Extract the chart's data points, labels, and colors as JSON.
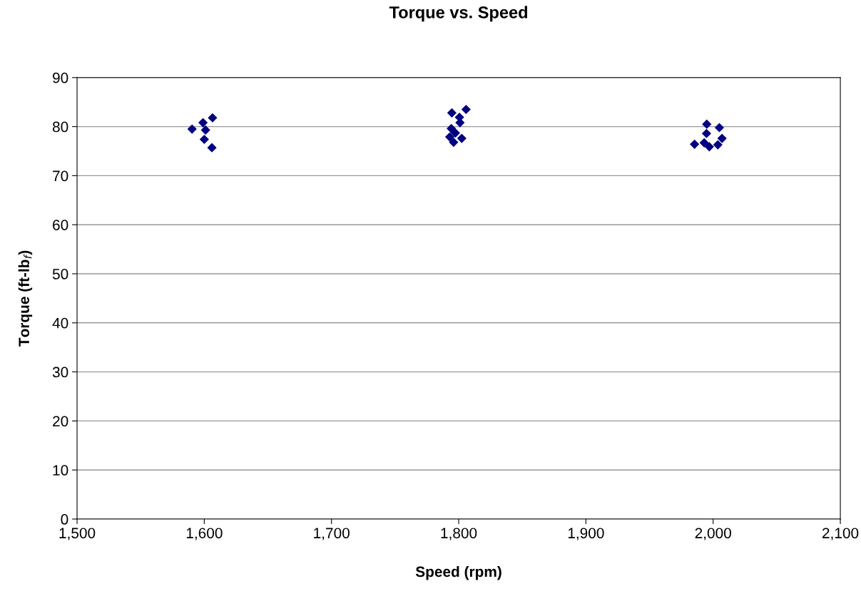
{
  "chart_data": {
    "type": "scatter",
    "title": "Torque vs. Speed",
    "xlabel": "Speed (rpm)",
    "ylabel": "Torque (ft-lb$_{f}$)",
    "series": [
      {
        "color": "#000080",
        "x": [
          1590.4,
          1599,
          1606.5,
          1601,
          1600,
          1606,
          1794.6,
          1805.8,
          1800.6,
          1801,
          1794.2,
          1797.4,
          1793,
          1802.4,
          1796,
          1995,
          2004.9,
          1994.8,
          2007,
          1985.4,
          1993,
          1997,
          2003.7
        ],
        "values": [
          79.5,
          80.8,
          81.8,
          79.3,
          77.4,
          75.7,
          82.8,
          83.5,
          81.9,
          80.8,
          79.6,
          78.7,
          77.9,
          77.6,
          76.8,
          80.5,
          79.8,
          78.6,
          77.6,
          76.4,
          76.7,
          75.9,
          76.3
        ]
      }
    ],
    "xlim": [
      1500,
      2100
    ],
    "xticks": [
      {
        "value": 1500,
        "label": "1,500"
      },
      {
        "value": 1600,
        "label": "1,600"
      },
      {
        "value": 1700,
        "label": "1,700"
      },
      {
        "value": 1800,
        "label": "1,800"
      },
      {
        "value": 1900,
        "label": "1,900"
      },
      {
        "value": 2000,
        "label": "2,000"
      },
      {
        "value": 2100,
        "label": "2,100"
      }
    ],
    "ylim": [
      0,
      90
    ],
    "yticks": [
      0,
      10,
      20,
      30,
      40,
      50,
      60,
      70,
      80,
      90
    ],
    "grid": "y",
    "marker": "diamond"
  }
}
